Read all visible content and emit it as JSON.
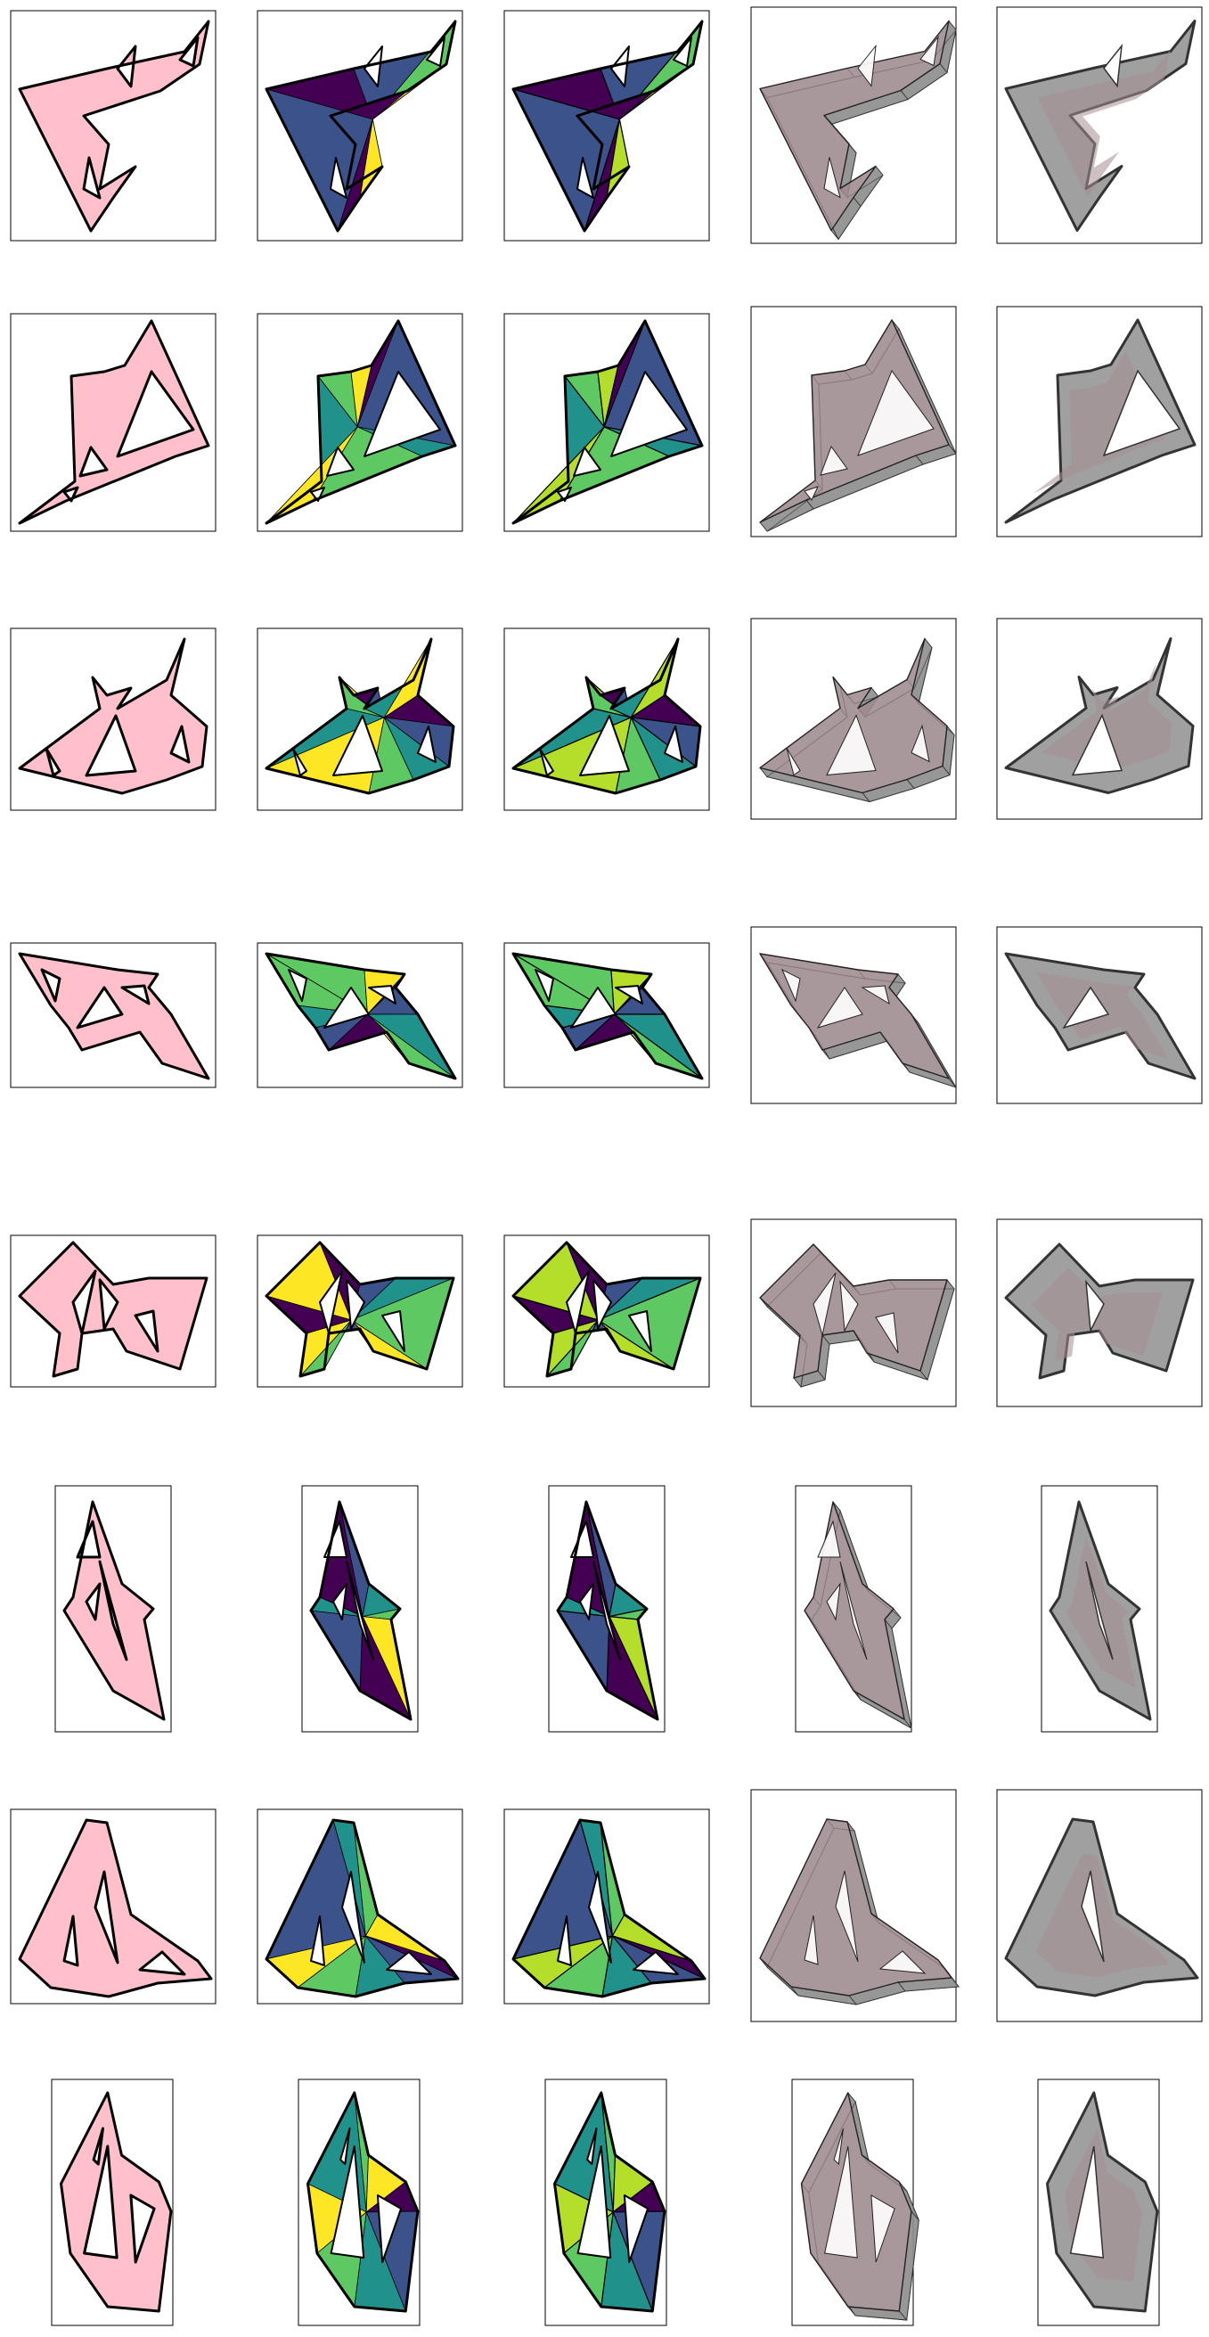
{
  "figure": {
    "rows": 8,
    "columns": 5,
    "columns_description": [
      "polygon-with-holes",
      "triangulation-coarse",
      "triangulation-fine",
      "extruded-3d",
      "projected-3d"
    ],
    "colors": {
      "pink": "#ffc0cb",
      "yellow": "#fde725",
      "green": "#5ec962",
      "teal": "#21918c",
      "blue": "#3b528b",
      "purple": "#440154",
      "lime": "#b5de2b",
      "grey": "#a0a0a0",
      "dark_grey": "#808080",
      "mauve": "#a48e93",
      "outline": "#000000"
    }
  }
}
